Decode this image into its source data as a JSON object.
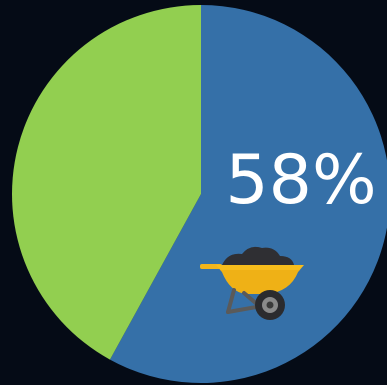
{
  "chart_data": {
    "type": "pie",
    "slices": [
      {
        "label": "",
        "value": 58,
        "color": "#3570a8"
      },
      {
        "label": "",
        "value": 42,
        "color": "#92cf50"
      }
    ],
    "data_label": "58%",
    "start": "top",
    "direction": "clockwise"
  },
  "background_color": "#050b16",
  "icon": "wheelbarrow-icon"
}
